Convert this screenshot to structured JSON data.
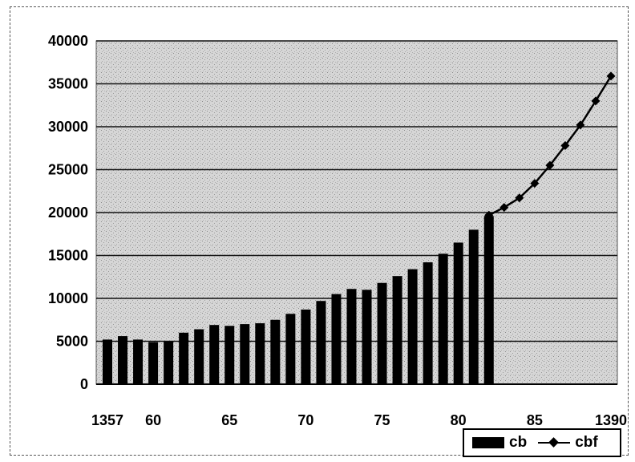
{
  "chart_data": {
    "type": "bar",
    "ylim": [
      0,
      40000
    ],
    "yticks": [
      "0",
      "5000",
      "10000",
      "15000",
      "20000",
      "25000",
      "30000",
      "35000",
      "40000"
    ],
    "xticks": [
      {
        "year": 1357,
        "label": "1357"
      },
      {
        "year": 1360,
        "label": "60"
      },
      {
        "year": 1365,
        "label": "65"
      },
      {
        "year": 1370,
        "label": "70"
      },
      {
        "year": 1375,
        "label": "75"
      },
      {
        "year": 1380,
        "label": "80"
      },
      {
        "year": 1385,
        "label": "85"
      },
      {
        "year": 1390,
        "label": "1390"
      }
    ],
    "grid": true,
    "legend": "bottom-right",
    "series": [
      {
        "name": "cb",
        "kind": "bar",
        "color": "#000000",
        "x": [
          1357,
          1358,
          1359,
          1360,
          1361,
          1362,
          1363,
          1364,
          1365,
          1366,
          1367,
          1368,
          1369,
          1370,
          1371,
          1372,
          1373,
          1374,
          1375,
          1376,
          1377,
          1378,
          1379,
          1380,
          1381,
          1382
        ],
        "values": [
          5200,
          5600,
          5200,
          4900,
          5000,
          6000,
          6400,
          6900,
          6800,
          7000,
          7100,
          7500,
          8200,
          8700,
          9700,
          10500,
          11100,
          11000,
          11800,
          12600,
          13400,
          14200,
          15200,
          16500,
          18000,
          19600
        ]
      },
      {
        "name": "cbf",
        "kind": "line",
        "color": "#000000",
        "x": [
          1382,
          1383,
          1384,
          1385,
          1386,
          1387,
          1388,
          1389,
          1390
        ],
        "values": [
          19700,
          20600,
          21700,
          23400,
          25500,
          27800,
          30200,
          33000,
          35900
        ]
      }
    ]
  }
}
